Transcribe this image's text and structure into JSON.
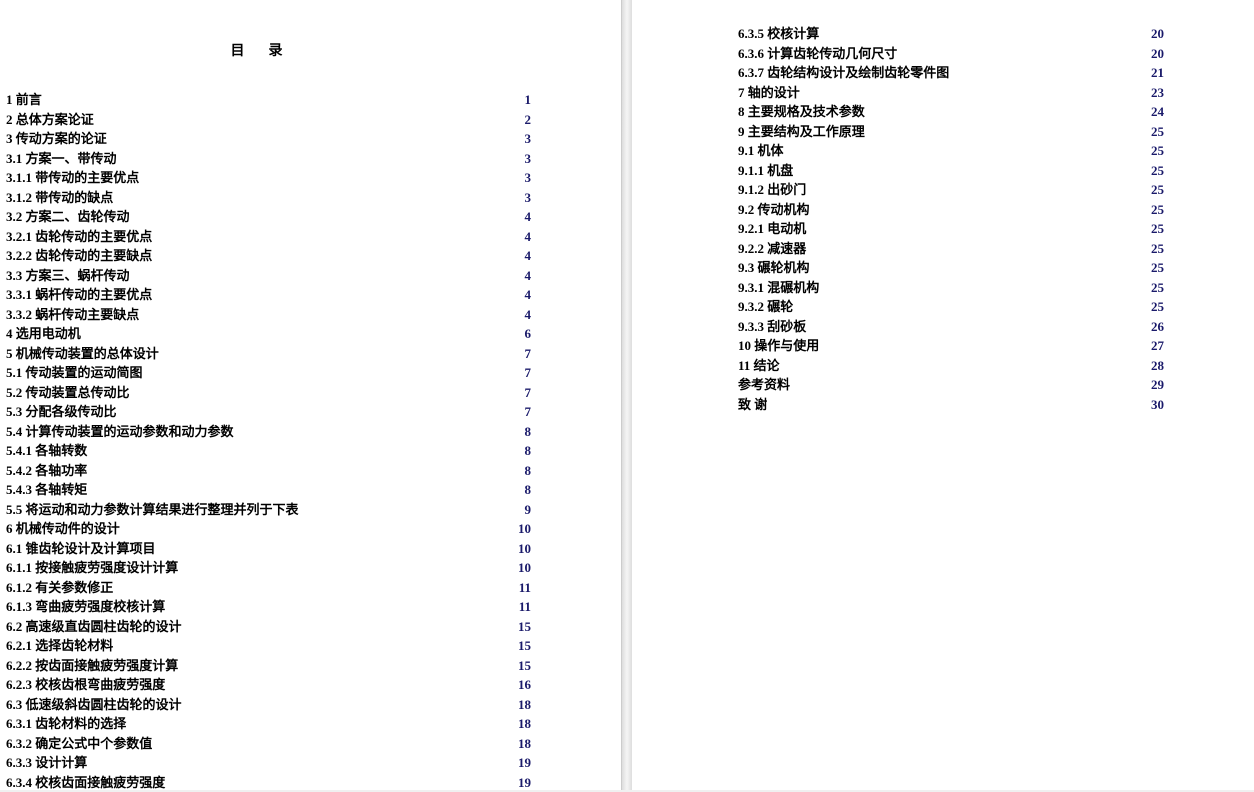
{
  "title": "目录",
  "left_entries": [
    {
      "label": "1  前言",
      "page": "1",
      "color": "blue"
    },
    {
      "label": "2  总体方案论证",
      "page": "2",
      "color": "blue"
    },
    {
      "label": "3  传动方案的论证",
      "page": "3",
      "color": "blue"
    },
    {
      "label": "3.1  方案一、带传动",
      "page": "3",
      "color": "blue"
    },
    {
      "label": "3.1.1  带传动的主要优点",
      "page": "3",
      "color": "blue"
    },
    {
      "label": "3.1.2  带传动的缺点",
      "page": "3",
      "color": "blue"
    },
    {
      "label": "3.2  方案二、齿轮传动",
      "page": "4",
      "color": "blue"
    },
    {
      "label": "3.2.1  齿轮传动的主要优点",
      "page": "4",
      "color": "blue"
    },
    {
      "label": "3.2.2  齿轮传动的主要缺点",
      "page": "4",
      "color": "blue"
    },
    {
      "label": "3.3  方案三、蜗杆传动",
      "page": "4",
      "color": "blue"
    },
    {
      "label": "3.3.1  蜗杆传动的主要优点",
      "page": "4",
      "color": "blue"
    },
    {
      "label": "3.3.2  蜗杆传动主要缺点",
      "page": "4",
      "color": "blue"
    },
    {
      "label": "4  选用电动机",
      "page": "6",
      "color": "blue"
    },
    {
      "label": "5  机械传动装置的总体设计",
      "page": "7",
      "color": "blue"
    },
    {
      "label": "5.1  传动装置的运动简图",
      "page": "7",
      "color": "blue"
    },
    {
      "label": "5.2  传动装置总传动比",
      "page": "7",
      "color": "blue"
    },
    {
      "label": "5.3  分配各级传动比",
      "page": "7",
      "color": "blue"
    },
    {
      "label": "5.4  计算传动装置的运动参数和动力参数",
      "page": "8",
      "color": "blue"
    },
    {
      "label": "5.4.1  各轴转数",
      "page": "8",
      "color": "blue"
    },
    {
      "label": "5.4.2  各轴功率",
      "page": "8",
      "color": "blue"
    },
    {
      "label": "5.4.3  各轴转矩",
      "page": "8",
      "color": "blue"
    },
    {
      "label": "5.5  将运动和动力参数计算结果进行整理并列于下表",
      "page": "9",
      "color": "blue"
    },
    {
      "label": "6  机械传动件的设计",
      "page": "10",
      "color": "blue"
    },
    {
      "label": "6.1  锥齿轮设计及计算项目",
      "page": "10",
      "color": "blue"
    },
    {
      "label": "6.1.1  按接触疲劳强度设计计算",
      "page": "10",
      "color": "blue"
    },
    {
      "label": "6.1.2  有关参数修正",
      "page": "11",
      "color": "blue"
    },
    {
      "label": "6.1.3  弯曲疲劳强度校核计算",
      "page": "11",
      "color": "blue"
    },
    {
      "label": "6.2  高速级直齿圆柱齿轮的设计",
      "page": "15",
      "color": "blue"
    },
    {
      "label": "6.2.1  选择齿轮材料",
      "page": "15",
      "color": "blue"
    },
    {
      "label": "6.2.2  按齿面接触疲劳强度计算",
      "page": "15",
      "color": "blue"
    },
    {
      "label": "6.2.3  校核齿根弯曲疲劳强度",
      "page": "16",
      "color": "blue"
    },
    {
      "label": "6.3  低速级斜齿圆柱齿轮的设计",
      "page": "18",
      "color": "blue"
    },
    {
      "label": "6.3.1  齿轮材料的选择",
      "page": "18",
      "color": "blue"
    },
    {
      "label": "6.3.2  确定公式中个参数值",
      "page": "18",
      "color": "blue"
    },
    {
      "label": "6.3.3  设计计算",
      "page": "19",
      "color": "blue"
    },
    {
      "label": "6.3.4  校核齿面接触疲劳强度",
      "page": "19",
      "color": "blue"
    }
  ],
  "right_entries": [
    {
      "label": "6.3.5  校核计算",
      "page": "20",
      "color": "blue"
    },
    {
      "label": "6.3.6  计算齿轮传动几何尺寸",
      "page": "20",
      "color": "blue"
    },
    {
      "label": "6.3.7  齿轮结构设计及绘制齿轮零件图",
      "page": "21",
      "color": "blue"
    },
    {
      "label": "7  轴的设计",
      "page": "23",
      "color": "blue"
    },
    {
      "label": "8  主要规格及技术参数",
      "page": "24",
      "color": "blue"
    },
    {
      "label": "9 主要结构及工作原理",
      "page": "25",
      "color": "blue"
    },
    {
      "label": "9.1  机体",
      "page": "25",
      "color": "blue"
    },
    {
      "label": "9.1.1  机盘",
      "page": "25",
      "color": "blue"
    },
    {
      "label": "9.1.2  出砂门",
      "page": "25",
      "color": "blue"
    },
    {
      "label": "9.2  传动机构",
      "page": "25",
      "color": "blue"
    },
    {
      "label": "9.2.1  电动机",
      "page": "25",
      "color": "blue"
    },
    {
      "label": "9.2.2  减速器",
      "page": "25",
      "color": "blue"
    },
    {
      "label": "9.3  碾轮机构",
      "page": "25",
      "color": "blue"
    },
    {
      "label": "9.3.1  混碾机构",
      "page": "25",
      "color": "blue"
    },
    {
      "label": "9.3.2  碾轮",
      "page": "25",
      "color": "blue"
    },
    {
      "label": "9.3.3  刮砂板",
      "page": "26",
      "color": "blue"
    },
    {
      "label": "10  操作与使用",
      "page": "27",
      "color": "blue"
    },
    {
      "label": "11  结论",
      "page": "28",
      "color": "blue"
    },
    {
      "label": "参考资料",
      "page": "29",
      "color": "blue"
    },
    {
      "label": "致    谢",
      "page": "30",
      "color": "blue"
    }
  ]
}
